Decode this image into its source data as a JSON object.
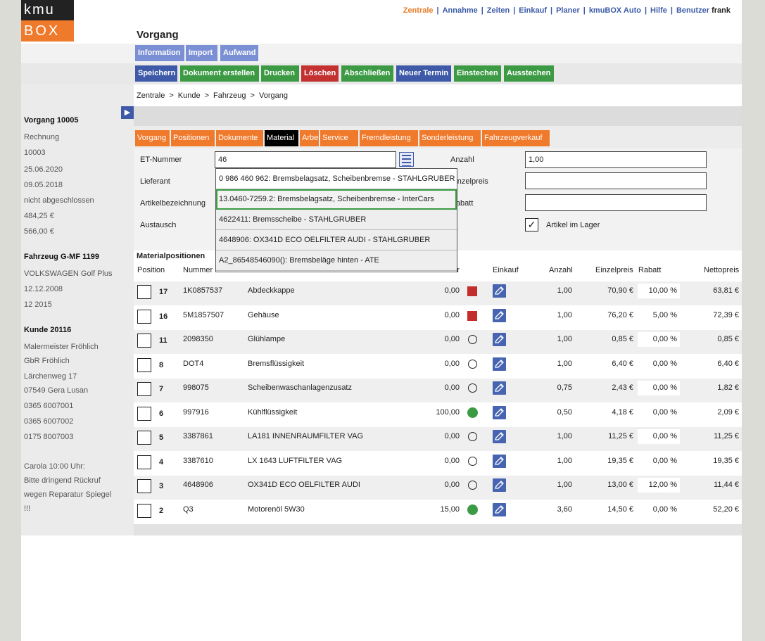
{
  "logo": {
    "top": "kmu",
    "bottom": "BOX"
  },
  "topnav": {
    "items": [
      {
        "label": "Zentrale",
        "active": true
      },
      {
        "label": "Annahme"
      },
      {
        "label": "Zeiten"
      },
      {
        "label": "Einkauf"
      },
      {
        "label": "Planer"
      },
      {
        "label": "kmuBOX Auto"
      },
      {
        "label": "Hilfe"
      }
    ],
    "user_label": "Benutzer",
    "user_name": "frank"
  },
  "title": "Vorgang",
  "subtabs": [
    "Information",
    "Import",
    "Aufwand"
  ],
  "actions": [
    "Speichern",
    "Dokument erstellen",
    "Drucken",
    "Löschen",
    "Abschließen",
    "Neuer Termin",
    "Einstechen",
    "Ausstechen"
  ],
  "breadcrumb": [
    "Zentrale",
    "Kunde",
    "Fahrzeug",
    "Vorgang"
  ],
  "breadcrumb_sep": ">",
  "sidebar": {
    "vorgang_title": "Vorgang 10005",
    "vorgang": [
      "Rechnung",
      "10003",
      "25.06.2020",
      "09.05.2018",
      "nicht abgeschlossen",
      "484,25 €",
      "566,00 €"
    ],
    "fahrzeug_title": "Fahrzeug G-MF 1199",
    "fahrzeug": [
      "VOLKSWAGEN Golf Plus",
      "12.12.2008",
      "12 2015"
    ],
    "kunde_title": "Kunde 20116",
    "kunde": [
      "Malermeister Fröhlich",
      "GbR Fröhlich",
      "Lärchenweg 17",
      "07549 Gera Lusan",
      "0365 6007001",
      "0365 6007002",
      "0175 8007003"
    ],
    "note": [
      "Carola 10:00 Uhr:",
      "Bitte dringend Rückruf",
      "wegen Reparatur Spiegel",
      "!!!"
    ]
  },
  "tabs": [
    "Vorgang",
    "Positionen",
    "Dokumente",
    "Material",
    "Arbeit",
    "Service",
    "Fremdleistung",
    "Sonderleistung",
    "Fahrzeugverkauf"
  ],
  "active_tab": "Material",
  "form": {
    "et_label": "ET-Nummer",
    "et_value": "46",
    "lieferant_label": "Lieferant",
    "artikel_label": "Artikelbezeichnung",
    "austausch_label": "Austausch",
    "anzahl_label": "Anzahl",
    "anzahl_value": "1,00",
    "einzelpreis_label": "Einzelpreis",
    "rabatt_label": "Rabatt",
    "lager_label": "Artikel im Lager",
    "lager_checked": true
  },
  "dropdown": [
    "0 986 460 962: Bremsbelagsatz, Scheibenbremse - STAHLGRUBER",
    "13.0460-7259.2: Bremsbelagsatz, Scheibenbremse - InterCars",
    "4622411: Bremsscheibe - STAHLGRUBER",
    "4648906: OX341D ECO OELFILTER AUDI - STAHLGRUBER",
    "A2_86548546090(): Bremsbeläge hinten - ATE"
  ],
  "dropdown_highlight": 1,
  "materialpositionen_title": "Materialpositionen",
  "columns": {
    "position": "Position",
    "nummer": "Nummer",
    "lager": "Lager",
    "einkauf": "Einkauf",
    "anzahl": "Anzahl",
    "einzelpreis": "Einzelpreis",
    "rabatt": "Rabatt",
    "nettopreis": "Nettopreis"
  },
  "rows": [
    {
      "pos": "17",
      "num": "1K0857537",
      "name": "Abdeckkappe",
      "lager": "0,00",
      "status": "red",
      "anzahl": "1,00",
      "einzel": "70,90 €",
      "rabatt": "10,00 %",
      "netto": "63,81 €"
    },
    {
      "pos": "16",
      "num": "5M1857507",
      "name": "Gehäuse",
      "lager": "0,00",
      "status": "red",
      "anzahl": "1,00",
      "einzel": "76,20 €",
      "rabatt": "5,00 %",
      "netto": "72,39 €"
    },
    {
      "pos": "11",
      "num": "2098350",
      "name": "Glühlampe",
      "lager": "0,00",
      "status": "empty",
      "anzahl": "1,00",
      "einzel": "0,85 €",
      "rabatt": "0,00 %",
      "netto": "0,85 €"
    },
    {
      "pos": "8",
      "num": "DOT4",
      "name": "Bremsflüssigkeit",
      "lager": "0,00",
      "status": "empty",
      "anzahl": "1,00",
      "einzel": "6,40 €",
      "rabatt": "0,00 %",
      "netto": "6,40 €"
    },
    {
      "pos": "7",
      "num": "998075",
      "name": "Scheibenwaschanlagenzusatz",
      "lager": "0,00",
      "status": "empty",
      "anzahl": "0,75",
      "einzel": "2,43 €",
      "rabatt": "0,00 %",
      "netto": "1,82 €"
    },
    {
      "pos": "6",
      "num": "997916",
      "name": "Kühlflüssigkeit",
      "lager": "100,00",
      "status": "green",
      "anzahl": "0,50",
      "einzel": "4,18 €",
      "rabatt": "0,00 %",
      "netto": "2,09 €"
    },
    {
      "pos": "5",
      "num": "3387861",
      "name": "LA181 INNENRAUMFILTER VAG",
      "lager": "0,00",
      "status": "empty",
      "anzahl": "1,00",
      "einzel": "11,25 €",
      "rabatt": "0,00 %",
      "netto": "11,25 €"
    },
    {
      "pos": "4",
      "num": "3387610",
      "name": "LX 1643 LUFTFILTER VAG",
      "lager": "0,00",
      "status": "empty",
      "anzahl": "1,00",
      "einzel": "19,35 €",
      "rabatt": "0,00 %",
      "netto": "19,35 €"
    },
    {
      "pos": "3",
      "num": "4648906",
      "name": "OX341D ECO OELFILTER AUDI",
      "lager": "0,00",
      "status": "empty",
      "anzahl": "1,00",
      "einzel": "13,00 €",
      "rabatt": "12,00 %",
      "netto": "11,44 €"
    },
    {
      "pos": "2",
      "num": "Q3",
      "name": "Motorenöl 5W30",
      "lager": "15,00",
      "status": "green",
      "anzahl": "3,60",
      "einzel": "14,50 €",
      "rabatt": "0,00 %",
      "netto": "52,20 €"
    }
  ],
  "icons": {
    "menu": "list-icon",
    "edit": "edit-pencil-icon",
    "arrow": "arrow-right-icon",
    "check": "checkmark-icon"
  },
  "colors": {
    "orange": "#f07a2c",
    "blue": "#3d59a8",
    "green": "#3c9a44",
    "red": "#c33131"
  }
}
